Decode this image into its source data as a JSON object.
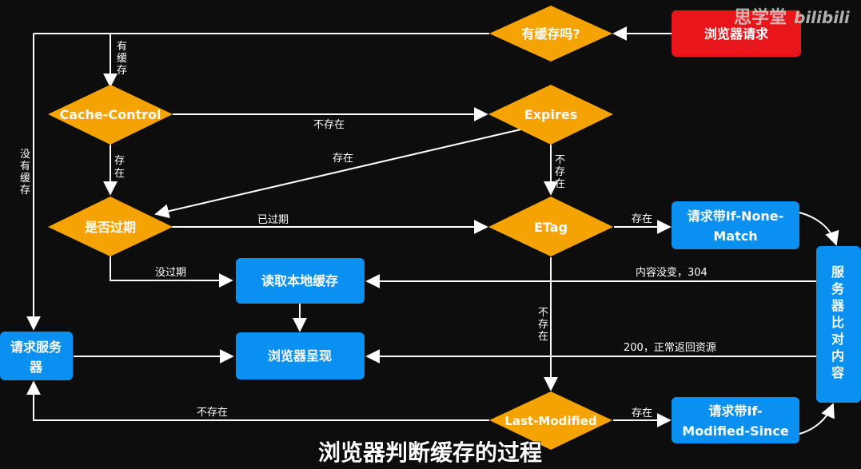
{
  "nodes": {
    "browser_request": "浏览器请求",
    "has_cache": "有缓存吗?",
    "cache_control": "Cache-Control",
    "expires": "Expires",
    "is_expired": "是否过期",
    "etag": "ETag",
    "if_none_match_line1": "请求带If-None-",
    "if_none_match_line2": "Match",
    "read_local_cache": "读取本地缓存",
    "request_server_line1": "请求服务",
    "request_server_line2": "器",
    "browser_render": "浏览器呈现",
    "server_compare_chars": [
      "服",
      "务",
      "器",
      "比",
      "对",
      "内",
      "容"
    ],
    "last_modified": "Last-Modified",
    "if_modified_since_line1": "请求带If-",
    "if_modified_since_line2": "Modified-Since"
  },
  "edges": {
    "has_cache_chars": [
      "有",
      "缓",
      "存"
    ],
    "no_cache_chars": [
      "没",
      "有",
      "缓",
      "存"
    ],
    "cc_not_exist": "不存在",
    "cc_exist_chars": [
      "存",
      "在"
    ],
    "expires_exist": "存在",
    "expires_not_exist_chars": [
      "不",
      "存",
      "在"
    ],
    "expired": "已过期",
    "not_expired": "没过期",
    "etag_exist": "存在",
    "etag_not_exist_chars": [
      "不",
      "存",
      "在"
    ],
    "unchanged_304": "内容没变，304",
    "ok_200": "200，正常返回资源",
    "lm_not_exist": "不存在",
    "lm_exist": "存在"
  },
  "subtitle": "浏览器判断缓存的过程",
  "watermark": "思学堂",
  "watermark_logo": "bilibili",
  "colors": {
    "diamond": "#f5a300",
    "box_blue": "#0a90f0",
    "box_red": "#e8151b",
    "line": "#ffffff",
    "background": "#0d0d0d"
  }
}
